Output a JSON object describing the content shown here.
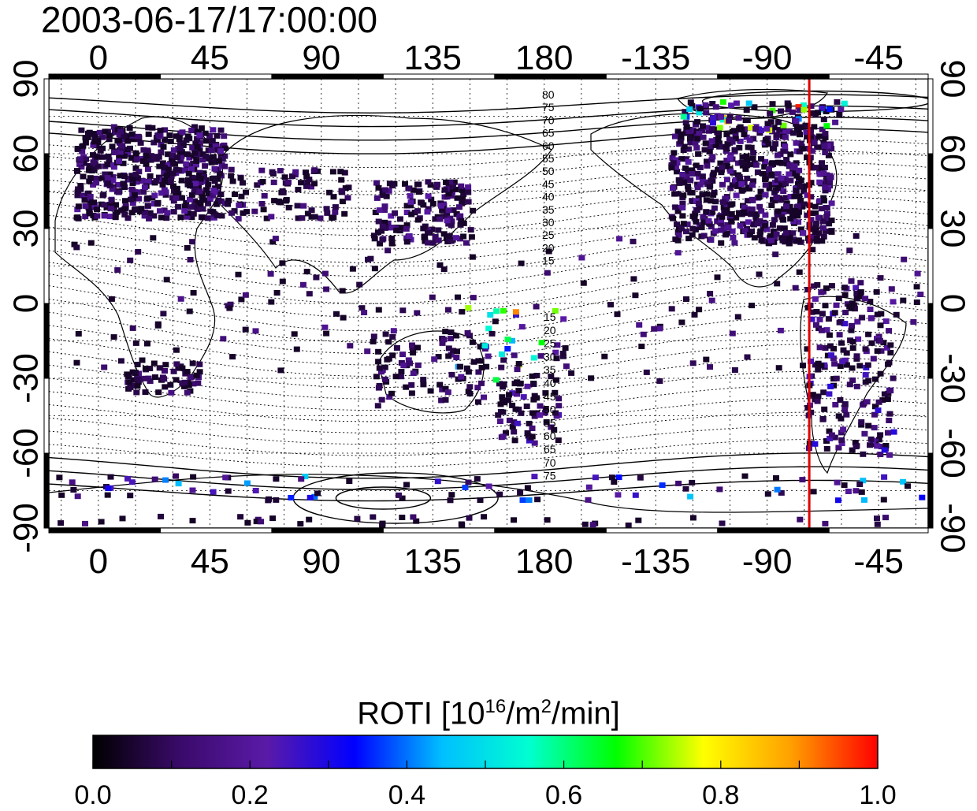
{
  "title": "2003-06-17/17:00:00",
  "map": {
    "top_ticks": [
      "0",
      "45",
      "90",
      "135",
      "180",
      "-135",
      "-90",
      "-45"
    ],
    "bottom_ticks": [
      "0",
      "45",
      "90",
      "135",
      "180",
      "-135",
      "-90",
      "-45"
    ],
    "left_ticks": [
      "90",
      "60",
      "30",
      "0",
      "-30",
      "-60",
      "-90"
    ],
    "right_ticks": [
      "90",
      "60",
      "30",
      "0",
      "-30",
      "-60",
      "-90"
    ],
    "tick_longitudes": [
      0,
      45,
      90,
      135,
      180,
      225,
      270,
      315
    ],
    "tick_latitudes": [
      90,
      60,
      30,
      0,
      -30,
      -60,
      -90
    ],
    "lon_range": [
      -20,
      335
    ],
    "lat_range": [
      -90,
      90
    ],
    "marker_line_longitude": 287,
    "marker_line_color": "#e00000",
    "north_contour_labels": [
      "80",
      "75",
      "70",
      "65",
      "60",
      "55",
      "50",
      "45",
      "40",
      "35",
      "30",
      "25",
      "20",
      "15"
    ],
    "south_contour_labels": [
      "15",
      "20",
      "25",
      "30",
      "35",
      "40",
      "45",
      "50",
      "55",
      "60",
      "65",
      "70",
      "75"
    ]
  },
  "colorbar": {
    "title_prefix": "ROTI  [10",
    "title_sup1": "16",
    "title_mid": "/m",
    "title_sup2": "2",
    "title_suffix": "/min]",
    "ticks": [
      "0.0",
      "0.2",
      "0.4",
      "0.6",
      "0.8",
      "1.0"
    ],
    "range": [
      0,
      1
    ],
    "stops": [
      "#000000",
      "#3a0a6a",
      "#5a1aa8",
      "#0000ff",
      "#00bfff",
      "#00ffd0",
      "#00ff00",
      "#ffff00",
      "#ffa000",
      "#ff0000"
    ]
  }
}
